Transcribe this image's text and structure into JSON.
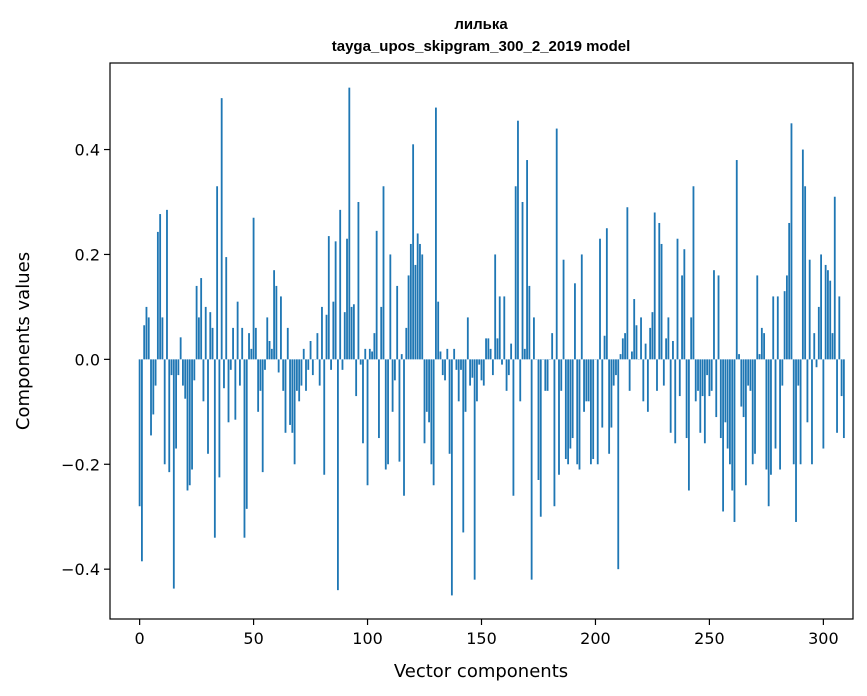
{
  "chart_data": {
    "type": "bar",
    "title_line1": "лилька",
    "title_line2": "tayga_upos_skipgram_300_2_2019 model",
    "xlabel": "Vector components",
    "ylabel": "Components values",
    "xlim": [
      -13,
      313
    ],
    "ylim": [
      -0.495,
      0.565
    ],
    "xticks": [
      0,
      50,
      100,
      150,
      200,
      250,
      300
    ],
    "xtick_labels": [
      "0",
      "50",
      "100",
      "150",
      "200",
      "250",
      "300"
    ],
    "yticks": [
      -0.4,
      -0.2,
      0.0,
      0.2,
      0.4
    ],
    "ytick_labels": [
      "−0.4",
      "−0.2",
      "0.0",
      "0.2",
      "0.4"
    ],
    "bar_color": "#1f77b4",
    "values": [
      -0.28,
      -0.385,
      0.065,
      0.1,
      0.08,
      -0.145,
      -0.105,
      -0.05,
      0.243,
      0.277,
      0.08,
      -0.2,
      0.285,
      -0.215,
      -0.03,
      -0.437,
      -0.17,
      -0.03,
      0.042,
      -0.05,
      -0.075,
      -0.25,
      -0.24,
      -0.21,
      -0.04,
      0.14,
      0.08,
      0.155,
      -0.08,
      0.1,
      -0.18,
      0.09,
      0.06,
      -0.34,
      0.33,
      -0.225,
      0.498,
      -0.055,
      0.195,
      -0.12,
      -0.02,
      0.06,
      -0.115,
      0.11,
      -0.05,
      0.06,
      -0.34,
      -0.285,
      0.05,
      0.02,
      0.27,
      0.06,
      -0.1,
      -0.06,
      -0.215,
      -0.02,
      0.08,
      0.035,
      0.02,
      0.17,
      0.14,
      -0.025,
      0.12,
      -0.06,
      -0.14,
      0.06,
      -0.125,
      -0.14,
      -0.2,
      -0.06,
      -0.08,
      -0.05,
      0.02,
      -0.06,
      -0.02,
      0.035,
      -0.03,
      0.0,
      0.05,
      -0.05,
      0.1,
      -0.22,
      0.085,
      0.235,
      -0.02,
      0.11,
      0.225,
      -0.44,
      0.285,
      -0.02,
      0.09,
      0.23,
      0.518,
      0.1,
      0.105,
      -0.07,
      0.3,
      -0.01,
      -0.16,
      0.02,
      -0.24,
      0.02,
      0.015,
      0.05,
      0.245,
      -0.15,
      0.1,
      0.33,
      -0.21,
      -0.2,
      0.2,
      -0.1,
      -0.04,
      0.14,
      -0.195,
      0.01,
      -0.26,
      0.06,
      0.16,
      0.22,
      0.41,
      0.18,
      0.24,
      0.22,
      0.2,
      -0.16,
      -0.1,
      -0.12,
      -0.2,
      -0.24,
      0.48,
      0.11,
      0.015,
      -0.03,
      -0.04,
      0.02,
      -0.18,
      -0.45,
      0.02,
      -0.02,
      -0.08,
      -0.02,
      -0.33,
      -0.1,
      0.08,
      -0.05,
      -0.035,
      -0.42,
      -0.08,
      -0.01,
      -0.04,
      -0.05,
      0.04,
      0.04,
      0.02,
      -0.03,
      0.2,
      0.04,
      0.12,
      -0.01,
      0.12,
      -0.06,
      -0.03,
      0.03,
      -0.26,
      0.33,
      0.455,
      -0.08,
      0.3,
      0.02,
      0.38,
      0.14,
      -0.42,
      0.08,
      0.0,
      -0.23,
      -0.3,
      0.0,
      -0.06,
      -0.06,
      0.0,
      0.05,
      -0.28,
      0.44,
      -0.22,
      -0.06,
      0.19,
      -0.19,
      -0.2,
      -0.17,
      -0.15,
      0.145,
      -0.2,
      -0.21,
      0.2,
      -0.1,
      -0.08,
      -0.08,
      -0.2,
      -0.19,
      0.0,
      -0.2,
      0.23,
      -0.13,
      0.045,
      0.25,
      -0.18,
      -0.13,
      -0.05,
      -0.03,
      -0.4,
      0.01,
      0.04,
      0.05,
      0.29,
      -0.06,
      0.015,
      0.115,
      0.065,
      0.0,
      0.08,
      -0.08,
      0.03,
      -0.1,
      0.06,
      0.09,
      0.28,
      -0.06,
      0.26,
      0.22,
      -0.05,
      0.04,
      0.08,
      -0.14,
      0.035,
      -0.16,
      0.23,
      -0.07,
      0.16,
      0.21,
      -0.15,
      -0.25,
      0.08,
      0.33,
      -0.08,
      -0.06,
      -0.14,
      -0.07,
      -0.16,
      -0.03,
      -0.07,
      -0.06,
      0.17,
      -0.11,
      0.16,
      -0.15,
      -0.29,
      -0.12,
      -0.17,
      -0.2,
      -0.25,
      -0.31,
      0.38,
      0.01,
      -0.09,
      -0.11,
      -0.24,
      -0.05,
      -0.06,
      -0.2,
      -0.18,
      0.16,
      0.01,
      0.06,
      0.05,
      -0.21,
      -0.28,
      -0.22,
      0.12,
      -0.17,
      0.12,
      -0.21,
      -0.05,
      0.13,
      0.16,
      0.26,
      0.45,
      -0.2,
      -0.31,
      -0.05,
      -0.2,
      0.4,
      0.33,
      -0.12,
      0.19,
      -0.2,
      0.05,
      -0.015,
      0.1,
      0.2,
      -0.17,
      0.18,
      0.17,
      0.15,
      0.05,
      0.31,
      -0.14,
      0.12,
      -0.07,
      -0.15
    ]
  }
}
